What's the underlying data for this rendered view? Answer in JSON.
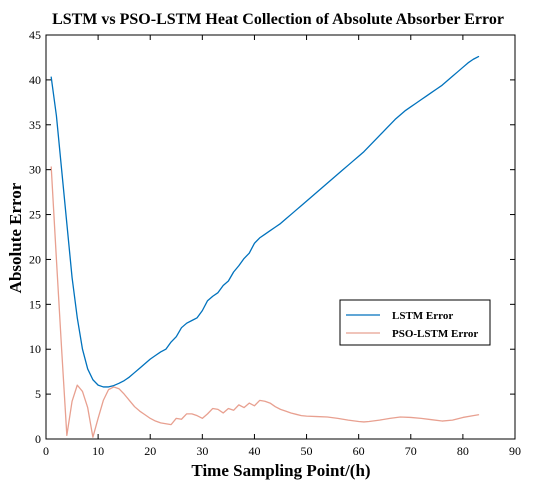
{
  "colors": {
    "lstm": "#0072BD",
    "pso": "#E8A090",
    "axes": "#000000",
    "background": "#ffffff"
  },
  "chart_data": {
    "type": "line",
    "title": "LSTM vs PSO-LSTM Heat Collection of Absolute Absorber Error",
    "xlabel": "Time Sampling Point/(h)",
    "ylabel": "Absolute Error",
    "xlim": [
      0,
      90
    ],
    "ylim": [
      0,
      45
    ],
    "xticks": [
      0,
      10,
      20,
      30,
      40,
      50,
      60,
      70,
      80,
      90
    ],
    "yticks": [
      0,
      5,
      10,
      15,
      20,
      25,
      30,
      35,
      40,
      45
    ],
    "grid": false,
    "legend_position": "lower-right",
    "series": [
      {
        "name": "LSTM Error",
        "color": "#0072BD",
        "points": [
          [
            1,
            40.3
          ],
          [
            2,
            36
          ],
          [
            3,
            30
          ],
          [
            4,
            24
          ],
          [
            5,
            18
          ],
          [
            6,
            13.5
          ],
          [
            7,
            10
          ],
          [
            8,
            7.8
          ],
          [
            9,
            6.6
          ],
          [
            10,
            6
          ],
          [
            11,
            5.8
          ],
          [
            12,
            5.8
          ],
          [
            13,
            5.95
          ],
          [
            14,
            6.2
          ],
          [
            15,
            6.5
          ],
          [
            16,
            6.9
          ],
          [
            17,
            7.4
          ],
          [
            18,
            7.9
          ],
          [
            19,
            8.4
          ],
          [
            20,
            8.9
          ],
          [
            21,
            9.3
          ],
          [
            22,
            9.7
          ],
          [
            23,
            10
          ],
          [
            24,
            10.8
          ],
          [
            25,
            11.4
          ],
          [
            26,
            12.4
          ],
          [
            27,
            12.9
          ],
          [
            28,
            13.2
          ],
          [
            29,
            13.5
          ],
          [
            30,
            14.3
          ],
          [
            31,
            15.4
          ],
          [
            32,
            15.9
          ],
          [
            33,
            16.3
          ],
          [
            34,
            17.1
          ],
          [
            35,
            17.6
          ],
          [
            36,
            18.6
          ],
          [
            37,
            19.3
          ],
          [
            38,
            20.1
          ],
          [
            39,
            20.7
          ],
          [
            40,
            21.8
          ],
          [
            41,
            22.4
          ],
          [
            42,
            22.8
          ],
          [
            43,
            23.2
          ],
          [
            44,
            23.6
          ],
          [
            45,
            24
          ],
          [
            46,
            24.5
          ],
          [
            47,
            25
          ],
          [
            48,
            25.5
          ],
          [
            49,
            26
          ],
          [
            50,
            26.5
          ],
          [
            51,
            27
          ],
          [
            52,
            27.5
          ],
          [
            53,
            28
          ],
          [
            54,
            28.5
          ],
          [
            55,
            29
          ],
          [
            56,
            29.5
          ],
          [
            57,
            30
          ],
          [
            58,
            30.5
          ],
          [
            59,
            31
          ],
          [
            60,
            31.5
          ],
          [
            61,
            32
          ],
          [
            62,
            32.6
          ],
          [
            63,
            33.2
          ],
          [
            64,
            33.8
          ],
          [
            65,
            34.4
          ],
          [
            66,
            35
          ],
          [
            67,
            35.6
          ],
          [
            68,
            36.1
          ],
          [
            69,
            36.6
          ],
          [
            70,
            37
          ],
          [
            71,
            37.4
          ],
          [
            72,
            37.8
          ],
          [
            73,
            38.2
          ],
          [
            74,
            38.6
          ],
          [
            75,
            39
          ],
          [
            76,
            39.4
          ],
          [
            77,
            39.9
          ],
          [
            78,
            40.4
          ],
          [
            79,
            40.9
          ],
          [
            80,
            41.4
          ],
          [
            81,
            41.9
          ],
          [
            82,
            42.3
          ],
          [
            83,
            42.6
          ]
        ]
      },
      {
        "name": "PSO-LSTM Error",
        "color": "#E8A090",
        "points": [
          [
            1,
            30.3
          ],
          [
            2,
            20
          ],
          [
            3,
            10
          ],
          [
            4,
            0.4
          ],
          [
            5,
            4.2
          ],
          [
            6,
            6
          ],
          [
            7,
            5.3
          ],
          [
            8,
            3.5
          ],
          [
            9,
            0.2
          ],
          [
            10,
            2.3
          ],
          [
            11,
            4.3
          ],
          [
            12,
            5.5
          ],
          [
            13,
            5.8
          ],
          [
            14,
            5.6
          ],
          [
            15,
            5
          ],
          [
            16,
            4.3
          ],
          [
            17,
            3.6
          ],
          [
            18,
            3.1
          ],
          [
            19,
            2.7
          ],
          [
            20,
            2.3
          ],
          [
            21,
            2
          ],
          [
            22,
            1.8
          ],
          [
            23,
            1.7
          ],
          [
            24,
            1.6
          ],
          [
            25,
            2.3
          ],
          [
            26,
            2.2
          ],
          [
            27,
            2.8
          ],
          [
            28,
            2.8
          ],
          [
            29,
            2.6
          ],
          [
            30,
            2.3
          ],
          [
            31,
            2.8
          ],
          [
            32,
            3.4
          ],
          [
            33,
            3.3
          ],
          [
            34,
            2.9
          ],
          [
            35,
            3.4
          ],
          [
            36,
            3.2
          ],
          [
            37,
            3.8
          ],
          [
            38,
            3.5
          ],
          [
            39,
            4
          ],
          [
            40,
            3.7
          ],
          [
            41,
            4.3
          ],
          [
            42,
            4.2
          ],
          [
            43,
            4
          ],
          [
            44,
            3.6
          ],
          [
            45,
            3.3
          ],
          [
            46,
            3.1
          ],
          [
            47,
            2.9
          ],
          [
            48,
            2.75
          ],
          [
            49,
            2.6
          ],
          [
            50,
            2.55
          ],
          [
            52,
            2.5
          ],
          [
            54,
            2.45
          ],
          [
            56,
            2.3
          ],
          [
            58,
            2.1
          ],
          [
            60,
            1.95
          ],
          [
            61,
            1.9
          ],
          [
            62,
            1.95
          ],
          [
            64,
            2.1
          ],
          [
            66,
            2.3
          ],
          [
            68,
            2.45
          ],
          [
            70,
            2.4
          ],
          [
            72,
            2.3
          ],
          [
            74,
            2.15
          ],
          [
            76,
            2
          ],
          [
            78,
            2.1
          ],
          [
            80,
            2.4
          ],
          [
            82,
            2.6
          ],
          [
            83,
            2.7
          ]
        ]
      }
    ]
  }
}
